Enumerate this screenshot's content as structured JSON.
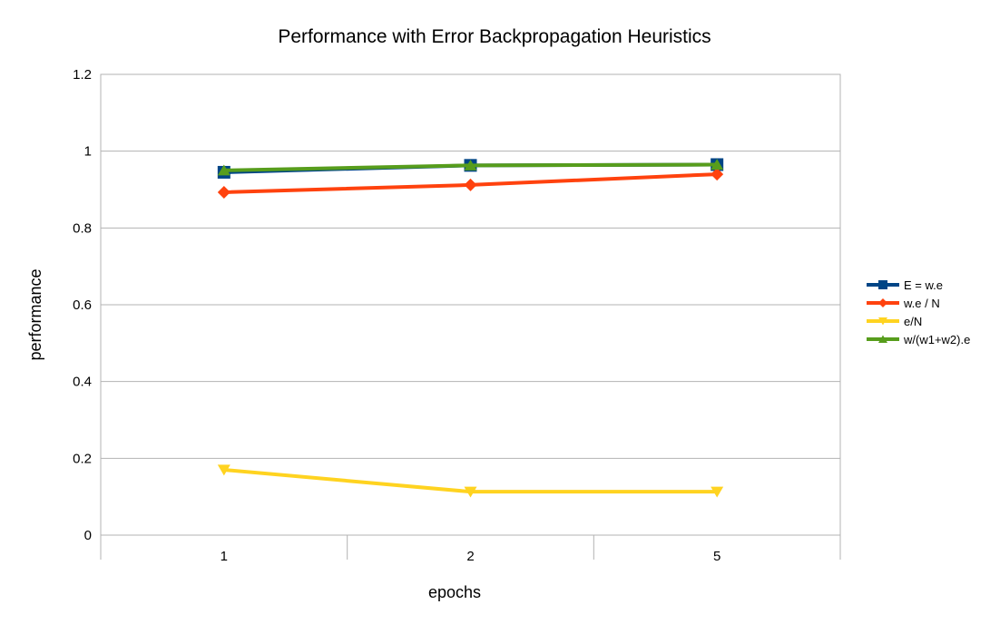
{
  "chart_data": {
    "type": "line",
    "title": "Performance with Error Backpropagation Heuristics",
    "xlabel": "epochs",
    "ylabel": "performance",
    "categories": [
      "1",
      "2",
      "5"
    ],
    "ylim": [
      0,
      1.2
    ],
    "yticks": [
      0,
      0.2,
      0.4,
      0.6,
      0.8,
      1,
      1.2
    ],
    "ytick_labels": [
      "0",
      "0.2",
      "0.4",
      "0.6",
      "0.8",
      "1",
      "1.2"
    ],
    "grid": true,
    "legend_position": "right",
    "series": [
      {
        "name": "E = w.e",
        "values": [
          0.945,
          0.963,
          0.965
        ],
        "color": "#004586",
        "marker": "square"
      },
      {
        "name": "w.e / N",
        "values": [
          0.893,
          0.912,
          0.94
        ],
        "color": "#ff420e",
        "marker": "diamond"
      },
      {
        "name": "e/N",
        "values": [
          0.17,
          0.113,
          0.113
        ],
        "color": "#ffd320",
        "marker": "triangle-down"
      },
      {
        "name": "w/(w1+w2).e",
        "values": [
          0.95,
          0.963,
          0.965
        ],
        "color": "#579d1c",
        "marker": "triangle-up"
      }
    ]
  }
}
